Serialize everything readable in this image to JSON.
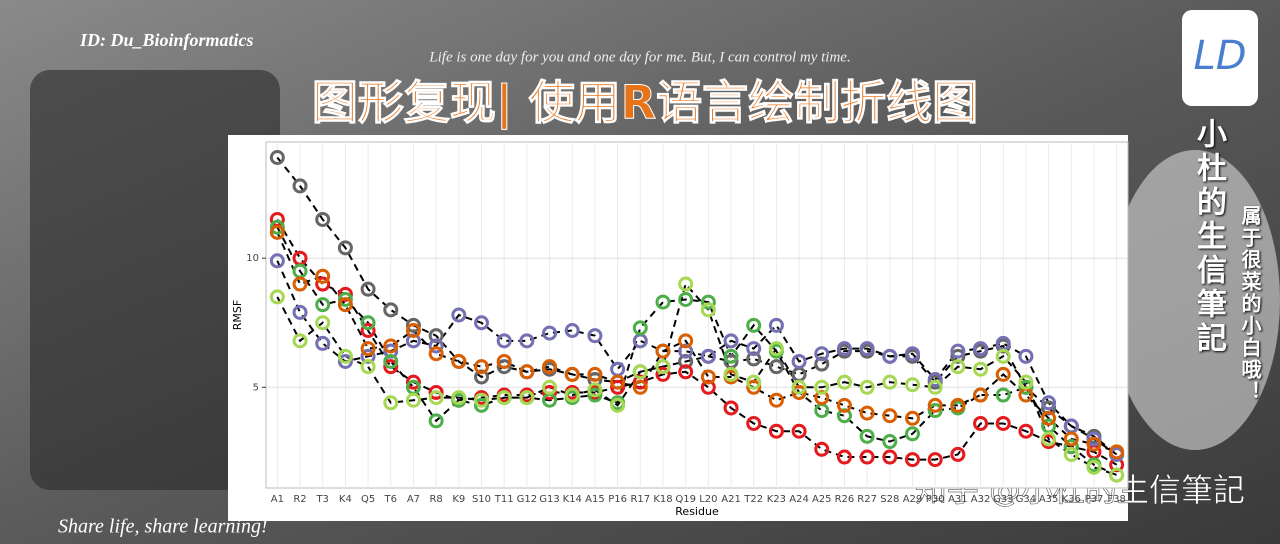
{
  "header": {
    "id": "ID: Du_Bioinformatics",
    "motto": "Life is one day for you and one day for me. But, I can control my time.",
    "title": "图形复现| 使用R语言绘制折线图",
    "logo": "LD",
    "blog_name": "小杜的生信筆記",
    "tagline": "属于很菜的小白哦！",
    "footer": "Share life, share learning!",
    "watermark": "知乎 @小杜的生信筆記"
  },
  "chart_data": {
    "type": "line",
    "x_label": "Residue",
    "y_label": "RMSF",
    "categories": [
      "A1",
      "R2",
      "T3",
      "K4",
      "Q5",
      "T6",
      "A7",
      "R8",
      "K9",
      "S10",
      "T11",
      "G12",
      "G13",
      "K14",
      "A15",
      "P16",
      "R17",
      "K18",
      "Q19",
      "L20",
      "A21",
      "T22",
      "K23",
      "A24",
      "A25",
      "R26",
      "R27",
      "S28",
      "A29",
      "P30",
      "A31",
      "A32",
      "G33",
      "G34",
      "A35",
      "K36",
      "P37",
      "F38"
    ],
    "ylim": [
      1.1,
      14.5
    ],
    "yticks": [
      5,
      10
    ],
    "grid": true,
    "line_color": "#000000",
    "series": [
      {
        "color": "#666666",
        "values": [
          13.9,
          12.8,
          11.5,
          10.4,
          8.8,
          8.0,
          7.4,
          7.0,
          6.0,
          5.4,
          5.8,
          5.6,
          5.7,
          5.5,
          5.3,
          5.2,
          5.6,
          5.8,
          6.0,
          6.2,
          6.0,
          6.1,
          5.8,
          5.5,
          5.9,
          6.4,
          6.4,
          6.2,
          6.2,
          5.2,
          6.2,
          6.4,
          6.6,
          5.0,
          4.2,
          3.5,
          3.1,
          2.4
        ]
      },
      {
        "color": "#e41a1c",
        "values": [
          11.5,
          10.0,
          9.0,
          8.6,
          7.2,
          5.8,
          5.2,
          4.8,
          4.5,
          4.6,
          4.7,
          4.7,
          4.8,
          4.8,
          4.8,
          5.0,
          5.2,
          5.5,
          5.6,
          5.0,
          4.2,
          3.6,
          3.3,
          3.3,
          2.6,
          2.3,
          2.3,
          2.3,
          2.2,
          2.2,
          2.4,
          3.6,
          3.6,
          3.3,
          2.9,
          2.7,
          2.5,
          2.0
        ]
      },
      {
        "color": "#7570b3",
        "values": [
          9.9,
          7.9,
          6.7,
          6.0,
          6.2,
          6.4,
          6.8,
          6.6,
          7.8,
          7.5,
          6.8,
          6.8,
          7.1,
          7.2,
          7.0,
          5.7,
          6.8,
          6.4,
          6.4,
          6.2,
          6.8,
          6.5,
          7.4,
          6.0,
          6.3,
          6.5,
          6.5,
          6.2,
          6.3,
          5.3,
          6.4,
          6.5,
          6.7,
          6.2,
          4.4,
          3.5,
          3.0,
          2.4
        ]
      },
      {
        "color": "#4daf4a",
        "values": [
          11.2,
          9.5,
          8.2,
          8.4,
          7.5,
          6.0,
          5.0,
          3.7,
          4.5,
          4.3,
          4.6,
          4.6,
          4.5,
          4.6,
          4.7,
          4.4,
          7.3,
          8.3,
          8.4,
          8.3,
          6.2,
          7.4,
          6.4,
          4.8,
          4.1,
          3.9,
          3.1,
          2.9,
          3.2,
          4.1,
          4.2,
          4.7,
          4.7,
          5.0,
          3.5,
          2.7,
          2.0,
          1.6
        ]
      },
      {
        "color": "#d95f02",
        "values": [
          11.0,
          9.0,
          9.3,
          8.2,
          6.5,
          6.6,
          7.2,
          6.3,
          6.0,
          5.8,
          6.0,
          5.6,
          5.8,
          5.5,
          5.5,
          5.2,
          5.0,
          6.4,
          6.8,
          5.4,
          5.4,
          5.0,
          4.5,
          4.8,
          4.6,
          4.3,
          4.0,
          3.9,
          3.8,
          4.3,
          4.3,
          4.7,
          5.5,
          4.7,
          3.8,
          3.0,
          2.8,
          2.5
        ]
      },
      {
        "color": "#a6d854",
        "values": [
          8.5,
          6.8,
          7.5,
          6.2,
          5.8,
          4.4,
          4.5,
          4.6,
          4.6,
          4.5,
          4.6,
          4.6,
          5.0,
          4.7,
          4.9,
          4.3,
          5.6,
          5.8,
          9.0,
          8.0,
          5.5,
          5.2,
          6.5,
          5.0,
          5.0,
          5.2,
          5.0,
          5.2,
          5.1,
          5.0,
          5.8,
          5.7,
          6.2,
          5.2,
          3.0,
          2.4,
          1.9,
          1.6
        ]
      }
    ]
  }
}
